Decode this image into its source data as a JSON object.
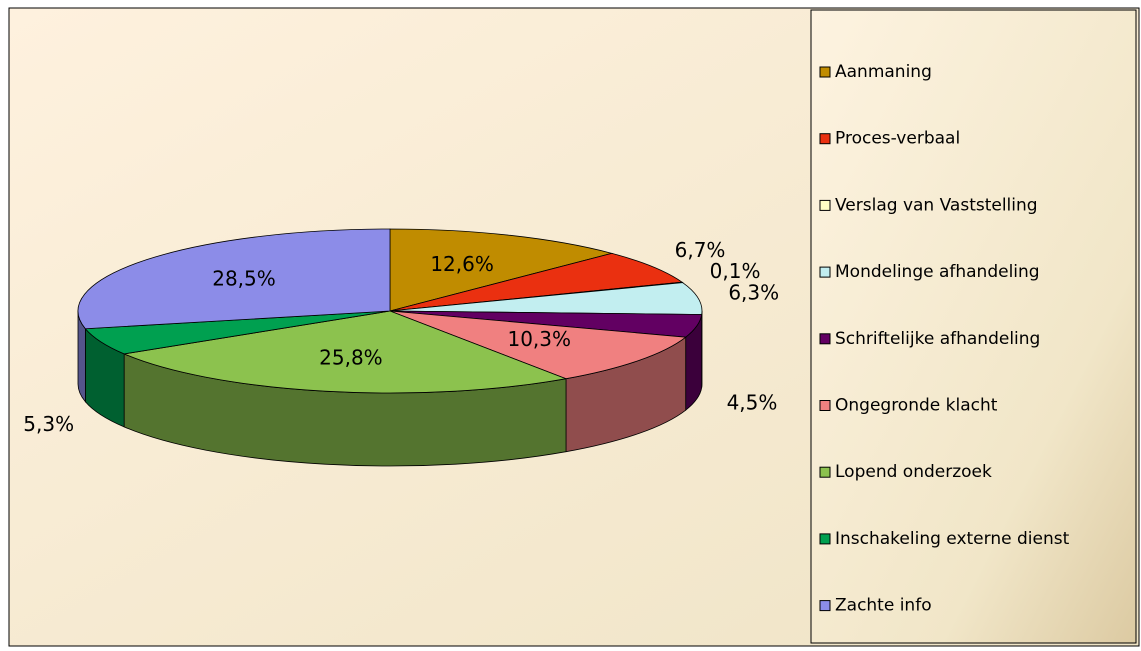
{
  "chart_data": {
    "type": "pie",
    "categories": [
      "Aanmaning",
      "Proces-verbaal",
      "Verslag van Vaststelling",
      "Mondelinge afhandeling",
      "Schriftelijke afhandeling",
      "Ongegronde klacht",
      "Lopend onderzoek",
      "Inschakeling externe dienst",
      "Zachte info"
    ],
    "values": [
      12.6,
      6.7,
      0.1,
      6.3,
      4.5,
      10.3,
      25.8,
      5.3,
      28.5
    ],
    "value_labels": [
      "12,6%",
      "6,7%",
      "0,1%",
      "6,3%",
      "4,5%",
      "10,3%",
      "25,8%",
      "5,3%",
      "28,5%"
    ],
    "colors": [
      "#c08c00",
      "#ea3010",
      "#ffffc4",
      "#c2eef0",
      "#620062",
      "#f08080",
      "#8cc24e",
      "#00a050",
      "#8c8ce8"
    ],
    "legend": "right"
  }
}
